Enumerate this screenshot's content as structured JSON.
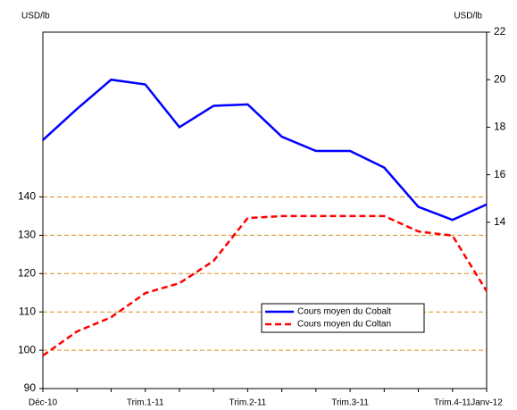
{
  "chart_data": {
    "type": "line",
    "y_label": "USD/lb",
    "y2_label": "USD/lb",
    "categories": [
      "Déc-10",
      null,
      null,
      "Trim.1-11",
      null,
      null,
      "Trim.2-11",
      null,
      null,
      "Trim.3-11",
      null,
      null,
      "Trim.4-11",
      "Janv-12"
    ],
    "series": [
      {
        "name": "Cours moyen du Cobalt",
        "color": "#0000ff",
        "axis": "y2",
        "dash": false,
        "values": [
          17.46,
          18.77,
          20.0,
          19.8,
          18.0,
          18.9,
          18.96,
          17.6,
          17.0,
          17.0,
          16.3,
          14.65,
          14.1,
          14.75
        ]
      },
      {
        "name": "Cours moyen du Coltan",
        "color": "#ff0000",
        "dash": true,
        "values": [
          98.6,
          104.9,
          108.6,
          114.9,
          117.5,
          123.3,
          134.5,
          135,
          135,
          135,
          135,
          131,
          129.9,
          115.4
        ]
      }
    ],
    "ylim": [
      90,
      183
    ],
    "yticks": [
      90,
      100,
      110,
      120,
      130,
      140
    ],
    "y2lim": [
      7,
      22
    ],
    "y2ticks": [
      14,
      16,
      18,
      20,
      22
    ],
    "grid": true,
    "grid_color": "#d4901c"
  }
}
